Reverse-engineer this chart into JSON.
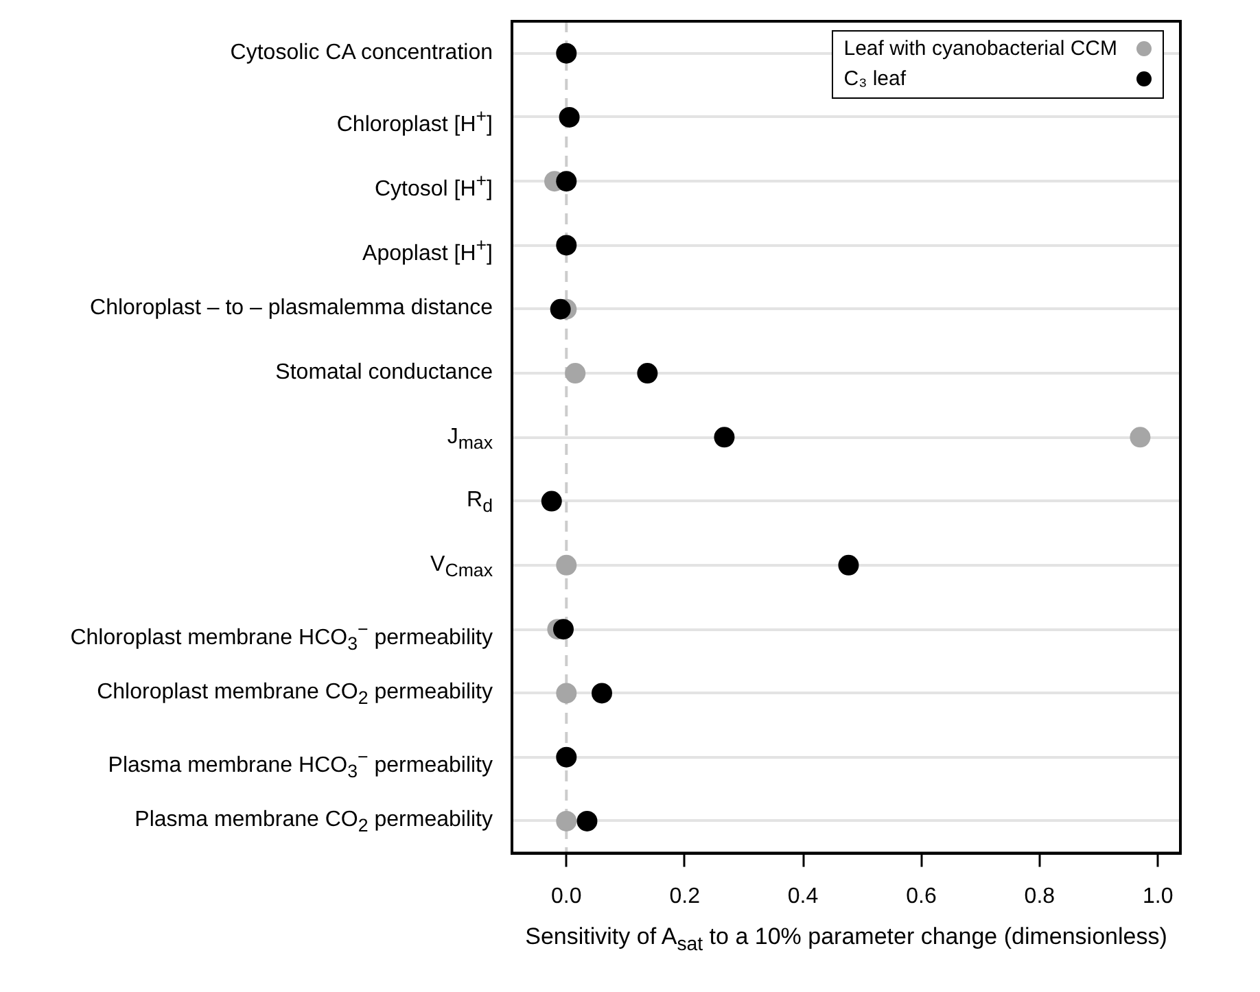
{
  "chart_data": {
    "type": "scatter",
    "xlabel": "Sensitivity of A$_{sat}$ to a 10% parameter change (dimensionless)",
    "categories": [
      "Cytosolic CA concentration",
      "Chloroplast [H$^{+}$]",
      "Cytosol [H$^{+}$]",
      "Apoplast [H$^{+}$]",
      "Chloroplast – to – plasmalemma distance",
      "Stomatal conductance",
      "J$_{max}$",
      "R$_{d}$",
      "V$_{Cmax}$",
      "Chloroplast membrane HCO$_{3}$$^{−}$ permeability",
      "Chloroplast membrane CO$_{2}$ permeability",
      "Plasma membrane HCO$_{3}$$^{−}$ permeability",
      "Plasma membrane CO$_{2}$ permeability"
    ],
    "orientation": "horizontal",
    "series": [
      {
        "name": "Leaf with cyanobacterial CCM",
        "color": "#a6a6a6",
        "values": [
          null,
          null,
          -0.02,
          null,
          0.0,
          0.015,
          0.97,
          null,
          0.0,
          -0.015,
          0.0,
          null,
          0.0
        ]
      },
      {
        "name": "C₃ leaf",
        "color": "#000000",
        "values": [
          0.0,
          0.005,
          0.0,
          0.0,
          -0.01,
          0.137,
          0.267,
          -0.025,
          0.477,
          -0.005,
          0.06,
          0.0,
          0.035
        ]
      }
    ],
    "xlim": [
      -0.092,
      1.038
    ],
    "xticks": [
      {
        "value": 0,
        "label": "0.0"
      },
      {
        "value": 0.2,
        "label": "0.2"
      },
      {
        "value": 0.4,
        "label": "0.4"
      },
      {
        "value": 0.6,
        "label": "0.6"
      },
      {
        "value": 0.8,
        "label": "0.8"
      },
      {
        "value": 1,
        "label": "1.0"
      }
    ],
    "ref_lines": [
      {
        "axis": "x",
        "value": 0,
        "color": "#cccccc",
        "line_style": "dashed"
      }
    ],
    "grid": "y",
    "legend": "top right",
    "marker": "circle"
  }
}
